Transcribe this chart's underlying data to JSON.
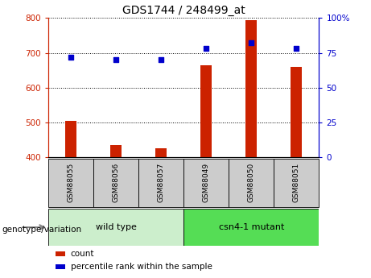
{
  "title": "GDS1744 / 248499_at",
  "categories": [
    "GSM88055",
    "GSM88056",
    "GSM88057",
    "GSM88049",
    "GSM88050",
    "GSM88051"
  ],
  "count_values": [
    505,
    435,
    425,
    665,
    793,
    660
  ],
  "percentile_values": [
    72,
    70,
    70,
    78,
    82,
    78
  ],
  "ylim_left": [
    400,
    800
  ],
  "ylim_right": [
    0,
    100
  ],
  "yticks_left": [
    400,
    500,
    600,
    700,
    800
  ],
  "yticks_right": [
    0,
    25,
    50,
    75,
    100
  ],
  "bar_color": "#cc2200",
  "dot_color": "#0000cc",
  "wild_type_label": "wild type",
  "mutant_label": "csn4-1 mutant",
  "legend_count": "count",
  "legend_percentile": "percentile rank within the sample",
  "genotype_label": "genotype/variation",
  "group_bg_wt": "#cceecc",
  "group_bg_mut": "#55dd55",
  "tick_bg": "#cccccc",
  "bar_width": 0.25
}
